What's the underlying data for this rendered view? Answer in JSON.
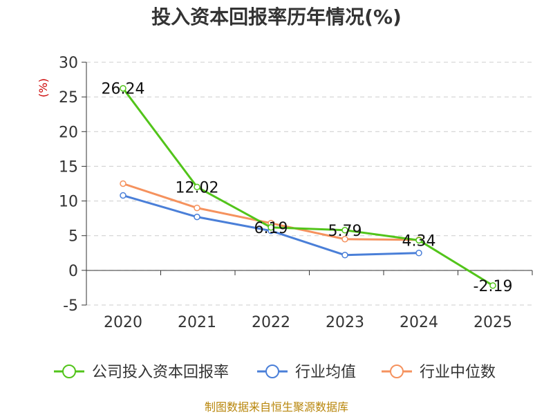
{
  "chart_data": {
    "type": "line",
    "title": "投入资本回报率历年情况(%)",
    "unit_label": "(%)",
    "categories": [
      "2020",
      "2021",
      "2022",
      "2023",
      "2024",
      "2025"
    ],
    "ylim": [
      -5,
      30
    ],
    "yticks": [
      -5,
      0,
      5,
      10,
      15,
      20,
      25,
      30
    ],
    "grid": true,
    "legend_position": "bottom",
    "series": [
      {
        "name": "公司投入资本回报率",
        "color": "#52c41a",
        "values": [
          26.24,
          12.02,
          6.19,
          5.79,
          4.34,
          -2.19
        ],
        "labels": [
          "26.24",
          "12.02",
          "6.19",
          "5.79",
          "4.34",
          "-2.19"
        ]
      },
      {
        "name": "行业均值",
        "color": "#4a7fd8",
        "values": [
          10.8,
          7.7,
          5.7,
          2.2,
          2.5,
          null
        ]
      },
      {
        "name": "行业中位数",
        "color": "#f5925e",
        "values": [
          12.5,
          9.0,
          6.8,
          4.5,
          4.4,
          null
        ]
      }
    ],
    "source": "制图数据来自恒生聚源数据库"
  }
}
